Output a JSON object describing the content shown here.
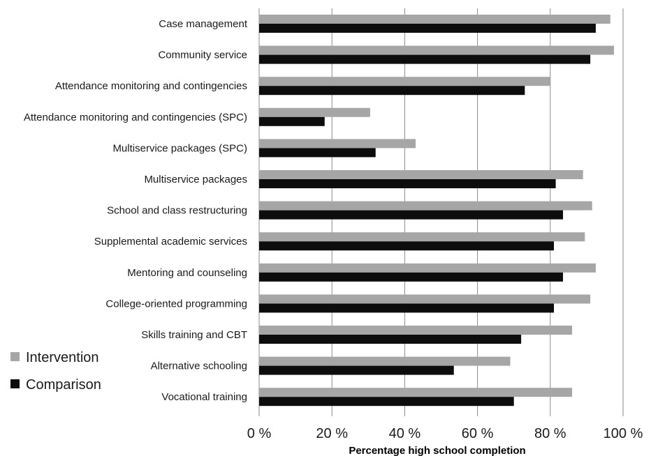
{
  "chart_data": {
    "type": "bar",
    "orientation": "horizontal",
    "title": "",
    "xlabel": "Percentage high school completion",
    "ylabel": "",
    "xlim": [
      0,
      100
    ],
    "x_ticks": [
      0,
      20,
      40,
      60,
      80,
      100
    ],
    "x_tick_labels": [
      "0 %",
      "20 %",
      "40 %",
      "60 %",
      "80 %",
      "100 %"
    ],
    "grid": true,
    "legend_position": "left",
    "categories": [
      "Case management",
      "Community service",
      "Attendance monitoring and contingencies",
      "Attendance monitoring and contingencies (SPC)",
      "Multiservice packages (SPC)",
      "Multiservice packages",
      "School and class restructuring",
      "Supplemental academic services",
      "Mentoring and counseling",
      "College-oriented programming",
      "Skills training and CBT",
      "Alternative schooling",
      "Vocational training"
    ],
    "series": [
      {
        "name": "Intervention",
        "color": "#a6a6a6",
        "values": [
          96.5,
          97.5,
          80,
          30.5,
          43,
          89,
          91.5,
          89.5,
          92.5,
          91,
          86,
          69,
          86
        ]
      },
      {
        "name": "Comparison",
        "color": "#0d0d0d",
        "values": [
          92.5,
          91,
          73,
          18,
          32,
          81.5,
          83.5,
          81,
          83.5,
          81,
          72,
          53.5,
          70
        ]
      }
    ]
  }
}
